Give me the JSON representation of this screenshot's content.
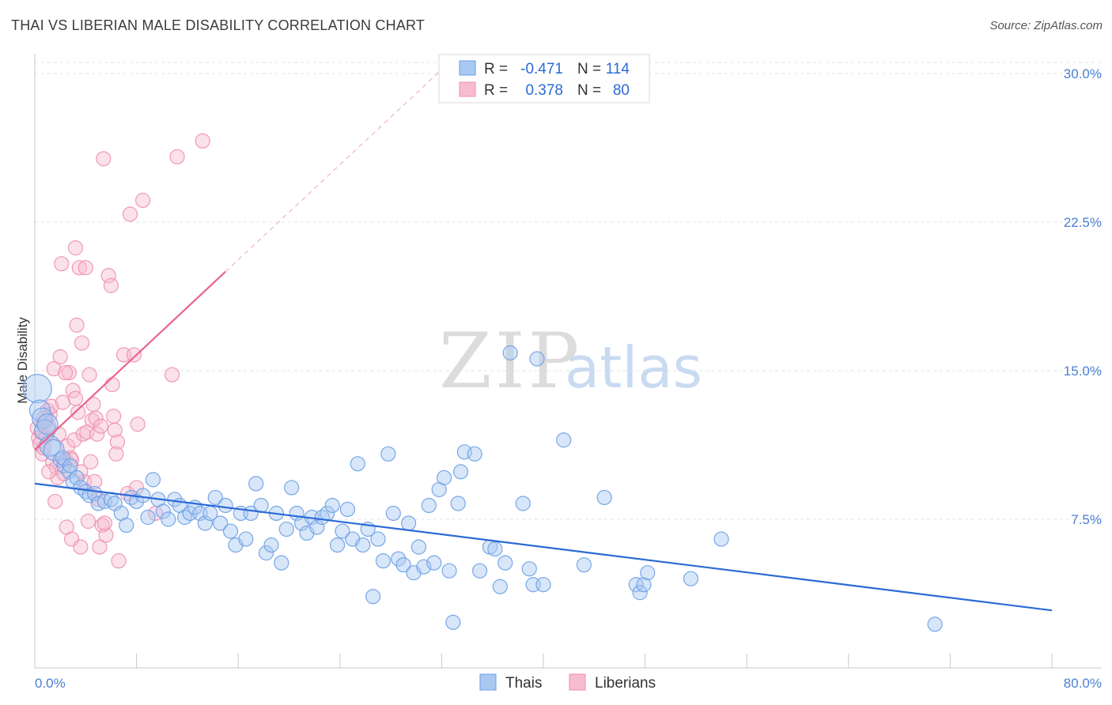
{
  "header": {
    "title": "THAI VS LIBERIAN MALE DISABILITY CORRELATION CHART",
    "source": "Source: ZipAtlas.com"
  },
  "colors": {
    "thai_fill": "#a9c8f2",
    "thai_stroke": "#6a9ee6",
    "thai_line": "#2b6ad6",
    "liberian_fill": "#f7bcd0",
    "liberian_stroke": "#ee8fae",
    "liberian_line": "#e8638f",
    "tick_text": "#4a7fd4"
  },
  "watermark": {
    "zip": "ZIP",
    "atlas": "atlas"
  },
  "legend": {
    "rows": [
      {
        "r_label": "R =",
        "r_value": "-0.471",
        "n_label": "N =",
        "n_value": "114"
      },
      {
        "r_label": "R =",
        "r_value": "0.378",
        "n_label": "N =",
        "n_value": "80"
      }
    ]
  },
  "bottom_legend": {
    "series1": "Thais",
    "series2": "Liberians"
  },
  "chart_data": {
    "type": "scatter",
    "title": "THAI VS LIBERIAN MALE DISABILITY CORRELATION CHART",
    "ylabel": "Male Disability",
    "xlabel": "",
    "xlim": [
      0,
      80
    ],
    "ylim": [
      0,
      31
    ],
    "x_tick_labels": [
      "0.0%",
      "80.0%"
    ],
    "y_ticks": [
      7.5,
      15.0,
      22.5,
      30.0
    ],
    "y_tick_labels": [
      "7.5%",
      "15.0%",
      "22.5%",
      "30.0%"
    ],
    "grid": "horizontal-dashed",
    "legend_position": "top-center",
    "series": [
      {
        "name": "Thais",
        "R": -0.471,
        "N": 114,
        "trend": {
          "x": [
            0,
            80
          ],
          "y": [
            9.3,
            2.9
          ]
        },
        "points": [
          [
            0.2,
            14.1
          ],
          [
            0.4,
            13.0
          ],
          [
            0.6,
            12.6
          ],
          [
            0.8,
            12.0
          ],
          [
            1.0,
            12.3
          ],
          [
            1.2,
            11.2
          ],
          [
            1.5,
            11.0
          ],
          [
            2.0,
            10.5
          ],
          [
            2.3,
            10.2
          ],
          [
            2.7,
            9.9
          ],
          [
            3.0,
            9.4
          ],
          [
            3.3,
            9.6
          ],
          [
            3.6,
            9.1
          ],
          [
            4.0,
            8.9
          ],
          [
            4.3,
            8.7
          ],
          [
            4.7,
            8.8
          ],
          [
            5.0,
            8.3
          ],
          [
            5.5,
            8.4
          ],
          [
            6.0,
            8.5
          ],
          [
            6.3,
            8.3
          ],
          [
            6.8,
            7.8
          ],
          [
            7.2,
            7.2
          ],
          [
            7.6,
            8.6
          ],
          [
            8.0,
            8.4
          ],
          [
            8.5,
            8.7
          ],
          [
            8.9,
            7.6
          ],
          [
            9.3,
            9.5
          ],
          [
            9.7,
            8.5
          ],
          [
            10.1,
            7.9
          ],
          [
            10.5,
            7.5
          ],
          [
            11.0,
            8.5
          ],
          [
            11.4,
            8.2
          ],
          [
            11.8,
            7.6
          ],
          [
            12.2,
            7.8
          ],
          [
            12.6,
            8.1
          ],
          [
            13.0,
            7.8
          ],
          [
            13.4,
            7.3
          ],
          [
            13.8,
            7.8
          ],
          [
            14.2,
            8.6
          ],
          [
            14.6,
            7.3
          ],
          [
            15.0,
            8.2
          ],
          [
            15.4,
            6.9
          ],
          [
            15.8,
            6.2
          ],
          [
            16.2,
            7.8
          ],
          [
            16.6,
            6.5
          ],
          [
            17.0,
            7.8
          ],
          [
            17.4,
            9.3
          ],
          [
            17.8,
            8.2
          ],
          [
            18.2,
            5.8
          ],
          [
            18.6,
            6.2
          ],
          [
            19.0,
            7.8
          ],
          [
            19.4,
            5.3
          ],
          [
            19.8,
            7.0
          ],
          [
            20.2,
            9.1
          ],
          [
            20.6,
            7.8
          ],
          [
            21.0,
            7.3
          ],
          [
            21.4,
            6.8
          ],
          [
            21.8,
            7.6
          ],
          [
            22.2,
            7.1
          ],
          [
            22.6,
            7.6
          ],
          [
            23.0,
            7.8
          ],
          [
            23.4,
            8.2
          ],
          [
            23.8,
            6.2
          ],
          [
            24.2,
            6.9
          ],
          [
            24.6,
            8.0
          ],
          [
            25.0,
            6.5
          ],
          [
            25.4,
            10.3
          ],
          [
            25.8,
            6.2
          ],
          [
            26.2,
            7.0
          ],
          [
            26.6,
            3.6
          ],
          [
            27.0,
            6.5
          ],
          [
            27.4,
            5.4
          ],
          [
            27.8,
            10.8
          ],
          [
            28.2,
            7.8
          ],
          [
            28.6,
            5.5
          ],
          [
            29.0,
            5.2
          ],
          [
            29.4,
            7.3
          ],
          [
            29.8,
            4.8
          ],
          [
            30.2,
            6.1
          ],
          [
            30.6,
            5.1
          ],
          [
            31.0,
            8.2
          ],
          [
            31.4,
            5.3
          ],
          [
            31.8,
            9.0
          ],
          [
            32.2,
            9.6
          ],
          [
            32.6,
            4.9
          ],
          [
            32.9,
            2.3
          ],
          [
            33.3,
            8.3
          ],
          [
            33.5,
            9.9
          ],
          [
            33.8,
            10.9
          ],
          [
            34.6,
            10.8
          ],
          [
            35.0,
            4.9
          ],
          [
            35.8,
            6.1
          ],
          [
            36.2,
            6.0
          ],
          [
            36.6,
            4.1
          ],
          [
            37.0,
            5.3
          ],
          [
            37.4,
            15.9
          ],
          [
            38.4,
            8.3
          ],
          [
            38.9,
            5.0
          ],
          [
            39.2,
            4.2
          ],
          [
            39.5,
            15.6
          ],
          [
            40.0,
            4.2
          ],
          [
            41.6,
            11.5
          ],
          [
            43.2,
            5.2
          ],
          [
            44.8,
            8.6
          ],
          [
            47.3,
            4.2
          ],
          [
            47.6,
            3.8
          ],
          [
            47.9,
            4.2
          ],
          [
            48.2,
            4.8
          ],
          [
            51.6,
            4.5
          ],
          [
            54.0,
            6.5
          ],
          [
            70.8,
            2.2
          ],
          [
            2.2,
            10.6
          ],
          [
            2.8,
            10.2
          ]
        ]
      },
      {
        "name": "Liberians",
        "R": 0.378,
        "N": 80,
        "trend": {
          "x": [
            0,
            15
          ],
          "y": [
            11.0,
            20.0
          ]
        },
        "points": [
          [
            0.2,
            12.1
          ],
          [
            0.3,
            11.6
          ],
          [
            0.4,
            11.3
          ],
          [
            0.5,
            11.9
          ],
          [
            0.6,
            10.8
          ],
          [
            0.7,
            11.1
          ],
          [
            0.8,
            12.4
          ],
          [
            0.9,
            11.7
          ],
          [
            1.0,
            13.0
          ],
          [
            1.1,
            12.2
          ],
          [
            1.2,
            12.8
          ],
          [
            1.3,
            13.2
          ],
          [
            1.4,
            10.4
          ],
          [
            1.5,
            15.1
          ],
          [
            1.6,
            8.4
          ],
          [
            1.7,
            10.1
          ],
          [
            1.8,
            9.6
          ],
          [
            1.9,
            11.8
          ],
          [
            2.0,
            15.7
          ],
          [
            2.1,
            20.4
          ],
          [
            2.2,
            13.4
          ],
          [
            2.3,
            9.8
          ],
          [
            2.4,
            10.5
          ],
          [
            2.5,
            7.1
          ],
          [
            2.6,
            11.2
          ],
          [
            2.7,
            14.9
          ],
          [
            2.8,
            10.6
          ],
          [
            2.9,
            6.5
          ],
          [
            3.0,
            14.0
          ],
          [
            3.1,
            11.5
          ],
          [
            3.2,
            21.2
          ],
          [
            3.3,
            17.3
          ],
          [
            3.4,
            12.9
          ],
          [
            3.5,
            20.2
          ],
          [
            3.6,
            6.1
          ],
          [
            3.7,
            16.4
          ],
          [
            3.8,
            11.8
          ],
          [
            3.9,
            9.4
          ],
          [
            4.0,
            20.2
          ],
          [
            4.1,
            11.9
          ],
          [
            4.2,
            7.4
          ],
          [
            4.3,
            14.8
          ],
          [
            4.4,
            10.4
          ],
          [
            4.5,
            12.5
          ],
          [
            4.6,
            13.3
          ],
          [
            4.7,
            9.4
          ],
          [
            4.8,
            12.6
          ],
          [
            4.9,
            11.8
          ],
          [
            5.0,
            8.5
          ],
          [
            5.1,
            6.1
          ],
          [
            5.2,
            12.2
          ],
          [
            5.3,
            7.2
          ],
          [
            5.4,
            25.7
          ],
          [
            5.6,
            6.7
          ],
          [
            5.8,
            19.8
          ],
          [
            6.0,
            19.3
          ],
          [
            6.1,
            14.3
          ],
          [
            6.2,
            12.7
          ],
          [
            6.3,
            12.0
          ],
          [
            6.5,
            11.4
          ],
          [
            6.6,
            5.4
          ],
          [
            7.0,
            15.8
          ],
          [
            7.3,
            8.8
          ],
          [
            7.5,
            22.9
          ],
          [
            7.8,
            15.8
          ],
          [
            8.0,
            9.1
          ],
          [
            8.1,
            12.3
          ],
          [
            8.5,
            23.6
          ],
          [
            9.5,
            7.8
          ],
          [
            10.8,
            14.8
          ],
          [
            11.2,
            25.8
          ],
          [
            13.2,
            26.6
          ],
          [
            2.4,
            14.9
          ],
          [
            3.2,
            13.6
          ],
          [
            1.1,
            9.9
          ],
          [
            0.7,
            12.6
          ],
          [
            2.9,
            10.5
          ],
          [
            5.5,
            7.3
          ],
          [
            6.4,
            10.8
          ],
          [
            3.6,
            9.9
          ]
        ]
      }
    ]
  }
}
